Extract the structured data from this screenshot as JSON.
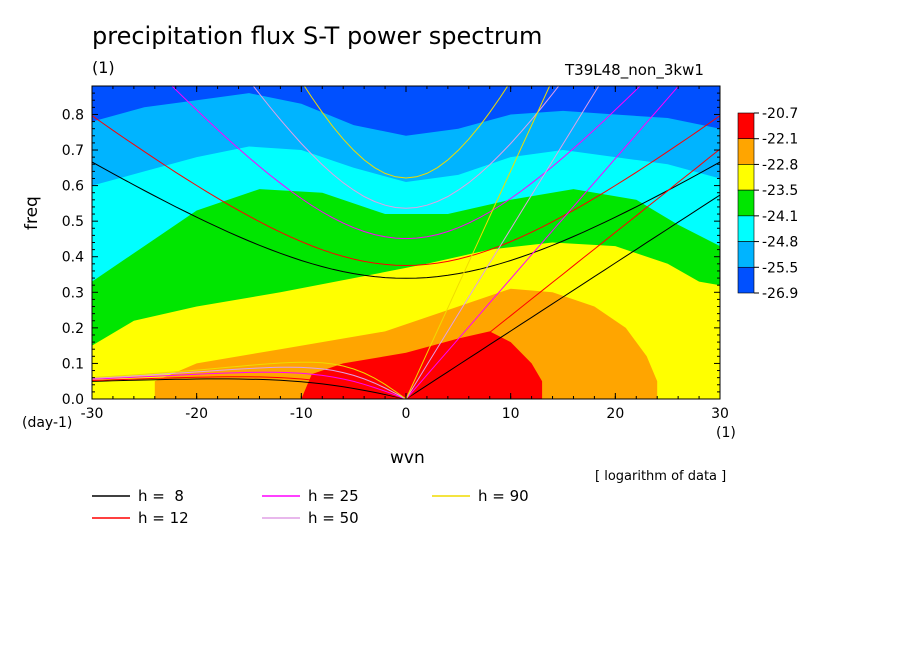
{
  "chart_data": {
    "type": "heatmap",
    "title": "precipitation flux S-T power spectrum",
    "unit_label": "(1)",
    "run_label": "T39L48_non_3kw1",
    "xlabel": "wvn",
    "ylabel": "freq",
    "x_unit": "(1)",
    "y_unit": "(day-1)",
    "note": "[ logarithm of data ]",
    "xlim": [
      -30,
      30
    ],
    "ylim": [
      0,
      0.88
    ],
    "xticks": [
      -30,
      -20,
      -10,
      0,
      10,
      20,
      30
    ],
    "yticks": [
      0.0,
      0.1,
      0.2,
      0.3,
      0.4,
      0.5,
      0.6,
      0.7,
      0.8
    ],
    "ytick_labels": [
      "0.0",
      "0.1",
      "0.2",
      "0.3",
      "0.4",
      "0.5",
      "0.6",
      "0.7",
      "0.8"
    ],
    "colorbar": {
      "levels": [
        "-20.7",
        "-22.1",
        "-22.8",
        "-23.5",
        "-24.1",
        "-24.8",
        "-25.5",
        "-26.9"
      ],
      "colors": [
        "#ff0000",
        "#ffa500",
        "#ffff00",
        "#00e600",
        "#00ffff",
        "#00b4ff",
        "#0050ff"
      ]
    },
    "contours": [
      {
        "level": "-21.5",
        "color": "#ff0000",
        "points": [
          [
            -10,
            0
          ],
          [
            -9,
            0.07
          ],
          [
            -6,
            0.1
          ],
          [
            0,
            0.13
          ],
          [
            5,
            0.17
          ],
          [
            8,
            0.19
          ],
          [
            10,
            0.16
          ],
          [
            12,
            0.1
          ],
          [
            13,
            0.05
          ],
          [
            13,
            0
          ]
        ]
      },
      {
        "level": "-22.5",
        "color": "#ffa500",
        "points": [
          [
            -24,
            0
          ],
          [
            -24,
            0.05
          ],
          [
            -20,
            0.1
          ],
          [
            -12,
            0.14
          ],
          [
            -2,
            0.19
          ],
          [
            5,
            0.26
          ],
          [
            10,
            0.31
          ],
          [
            14,
            0.3
          ],
          [
            18,
            0.26
          ],
          [
            21,
            0.2
          ],
          [
            23,
            0.12
          ],
          [
            24,
            0.05
          ],
          [
            24,
            0
          ]
        ]
      },
      {
        "level": "-23.2",
        "color": "#ffff00",
        "points": [
          [
            -30,
            0.15
          ],
          [
            -26,
            0.22
          ],
          [
            -20,
            0.26
          ],
          [
            -12,
            0.3
          ],
          [
            -5,
            0.34
          ],
          [
            2,
            0.38
          ],
          [
            8,
            0.42
          ],
          [
            14,
            0.44
          ],
          [
            20,
            0.43
          ],
          [
            25,
            0.38
          ],
          [
            28,
            0.33
          ],
          [
            30,
            0.32
          ]
        ]
      },
      {
        "level": "-23.8",
        "color": "#00e600",
        "points": [
          [
            -30,
            0.33
          ],
          [
            -25,
            0.43
          ],
          [
            -20,
            0.53
          ],
          [
            -14,
            0.59
          ],
          [
            -8,
            0.58
          ],
          [
            -2,
            0.52
          ],
          [
            4,
            0.52
          ],
          [
            10,
            0.56
          ],
          [
            16,
            0.59
          ],
          [
            22,
            0.56
          ],
          [
            26,
            0.49
          ],
          [
            30,
            0.43
          ]
        ]
      },
      {
        "level": "-24.5",
        "color": "#00ffff",
        "points": [
          [
            -30,
            0.6
          ],
          [
            -25,
            0.64
          ],
          [
            -20,
            0.68
          ],
          [
            -15,
            0.71
          ],
          [
            -10,
            0.7
          ],
          [
            -5,
            0.65
          ],
          [
            0,
            0.61
          ],
          [
            5,
            0.63
          ],
          [
            10,
            0.68
          ],
          [
            15,
            0.7
          ],
          [
            20,
            0.68
          ],
          [
            25,
            0.66
          ],
          [
            30,
            0.62
          ]
        ]
      },
      {
        "level": "-25.2",
        "color": "#00b4ff",
        "points": [
          [
            -30,
            0.78
          ],
          [
            -25,
            0.82
          ],
          [
            -20,
            0.84
          ],
          [
            -15,
            0.86
          ],
          [
            -10,
            0.83
          ],
          [
            -5,
            0.77
          ],
          [
            0,
            0.74
          ],
          [
            5,
            0.76
          ],
          [
            10,
            0.8
          ],
          [
            15,
            0.81
          ],
          [
            20,
            0.8
          ],
          [
            25,
            0.79
          ],
          [
            30,
            0.76
          ]
        ]
      }
    ],
    "series": [
      {
        "name": "h =  8",
        "color": "#000000"
      },
      {
        "name": "h = 12",
        "color": "#ff0000"
      },
      {
        "name": "h = 25",
        "color": "#ff00ff"
      },
      {
        "name": "h = 50",
        "color": "#e1a0e6"
      },
      {
        "name": "h = 90",
        "color": "#f0dc00"
      }
    ]
  }
}
